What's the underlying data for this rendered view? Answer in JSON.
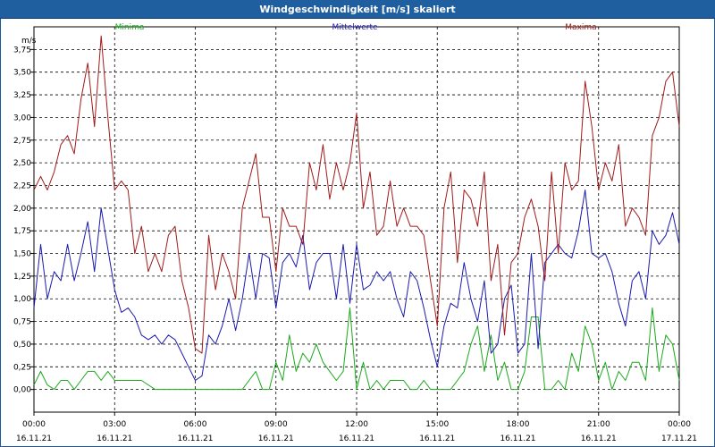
{
  "window": {
    "title": "Windgeschwindigkeit [m/s] skaliert"
  },
  "chart_data": {
    "type": "line",
    "title": "Windgeschwindigkeit [m/s] skaliert",
    "ylabel": "m/s",
    "xlabel": "",
    "ylim": [
      -0.25,
      4.0
    ],
    "xlim": [
      0,
      24
    ],
    "grid": true,
    "legend_position": "top",
    "y_ticks": [
      "0,00",
      "0,25",
      "0,50",
      "0,75",
      "1,00",
      "1,25",
      "1,50",
      "1,75",
      "2,00",
      "2,25",
      "2,50",
      "2,75",
      "3,00",
      "3,25",
      "3,50",
      "3,75"
    ],
    "y_tick_values": [
      0,
      0.25,
      0.5,
      0.75,
      1.0,
      1.25,
      1.5,
      1.75,
      2.0,
      2.25,
      2.5,
      2.75,
      3.0,
      3.25,
      3.5,
      3.75
    ],
    "x_ticks": [
      {
        "x": 0,
        "time": "00:00",
        "date": "16.11.21"
      },
      {
        "x": 3,
        "time": "03:00",
        "date": "16.11.21"
      },
      {
        "x": 6,
        "time": "06:00",
        "date": "16.11.21"
      },
      {
        "x": 9,
        "time": "09:00",
        "date": "16.11.21"
      },
      {
        "x": 12,
        "time": "12:00",
        "date": "16.11.21"
      },
      {
        "x": 15,
        "time": "15:00",
        "date": "16.11.21"
      },
      {
        "x": 18,
        "time": "18:00",
        "date": "16.11.21"
      },
      {
        "x": 21,
        "time": "21:00",
        "date": "16.11.21"
      },
      {
        "x": 24,
        "time": "00:00",
        "date": "17.11.21"
      }
    ],
    "series": [
      {
        "name": "Minima",
        "color": "#1aaa1a",
        "x": [
          0,
          0.25,
          0.5,
          0.75,
          1,
          1.25,
          1.5,
          1.75,
          2,
          2.25,
          2.5,
          2.75,
          3,
          3.5,
          4,
          4.5,
          5,
          5.5,
          6,
          6.5,
          7,
          7.5,
          7.75,
          8,
          8.25,
          8.5,
          8.75,
          9,
          9.25,
          9.5,
          9.75,
          10,
          10.25,
          10.5,
          10.75,
          11,
          11.25,
          11.5,
          11.75,
          12,
          12.25,
          12.5,
          12.75,
          13,
          13.25,
          13.5,
          13.75,
          14,
          14.25,
          14.5,
          14.75,
          15,
          15.25,
          15.5,
          15.75,
          16,
          16.25,
          16.5,
          16.75,
          17,
          17.25,
          17.5,
          17.75,
          18,
          18.25,
          18.5,
          18.75,
          19,
          19.25,
          19.5,
          19.75,
          20,
          20.25,
          20.5,
          20.75,
          21,
          21.25,
          21.5,
          21.75,
          22,
          22.25,
          22.5,
          22.75,
          23,
          23.25,
          23.5,
          23.75,
          24
        ],
        "values": [
          0.05,
          0.2,
          0.05,
          0.0,
          0.1,
          0.1,
          0.0,
          0.1,
          0.2,
          0.2,
          0.1,
          0.2,
          0.1,
          0.1,
          0.1,
          0.0,
          0.0,
          0.0,
          0.0,
          0.0,
          0.0,
          0.0,
          0.0,
          0.1,
          0.2,
          0.0,
          0.0,
          0.3,
          0.1,
          0.6,
          0.2,
          0.4,
          0.3,
          0.5,
          0.3,
          0.2,
          0.1,
          0.2,
          0.9,
          0.0,
          0.3,
          0.0,
          0.1,
          0.0,
          0.1,
          0.1,
          0.1,
          0.0,
          0.0,
          0.1,
          0.0,
          0.0,
          0.0,
          0.0,
          0.1,
          0.2,
          0.5,
          0.7,
          0.2,
          0.6,
          0.1,
          0.3,
          0.0,
          0.0,
          0.2,
          0.8,
          0.8,
          0.0,
          0.0,
          0.1,
          0.0,
          0.4,
          0.2,
          0.7,
          0.5,
          0.1,
          0.3,
          0.0,
          0.2,
          0.1,
          0.3,
          0.3,
          0.1,
          0.9,
          0.2,
          0.6,
          0.5,
          0.1
        ],
        "line_style": "step"
      },
      {
        "name": "Mittelwerte",
        "color": "#1a1ab0",
        "x": [
          0,
          0.25,
          0.5,
          0.75,
          1,
          1.25,
          1.5,
          1.75,
          2,
          2.25,
          2.5,
          2.75,
          3,
          3.25,
          3.5,
          3.75,
          4,
          4.25,
          4.5,
          4.75,
          5,
          5.25,
          5.5,
          5.75,
          6,
          6.25,
          6.5,
          6.75,
          7,
          7.25,
          7.5,
          7.75,
          8,
          8.25,
          8.5,
          8.75,
          9,
          9.25,
          9.5,
          9.75,
          10,
          10.25,
          10.5,
          10.75,
          11,
          11.25,
          11.5,
          11.75,
          12,
          12.25,
          12.5,
          12.75,
          13,
          13.25,
          13.5,
          13.75,
          14,
          14.25,
          14.5,
          14.75,
          15,
          15.25,
          15.5,
          15.75,
          16,
          16.25,
          16.5,
          16.75,
          17,
          17.25,
          17.5,
          17.75,
          18,
          18.25,
          18.5,
          18.75,
          19,
          19.25,
          19.5,
          19.75,
          20,
          20.25,
          20.5,
          20.75,
          21,
          21.25,
          21.5,
          21.75,
          22,
          22.25,
          22.5,
          22.75,
          23,
          23.25,
          23.5,
          23.75,
          24
        ],
        "values": [
          0.9,
          1.6,
          1.0,
          1.3,
          1.2,
          1.6,
          1.2,
          1.5,
          1.85,
          1.3,
          2.0,
          1.55,
          1.1,
          0.85,
          0.9,
          0.8,
          0.6,
          0.55,
          0.6,
          0.5,
          0.6,
          0.55,
          0.4,
          0.25,
          0.1,
          0.15,
          0.6,
          0.5,
          0.7,
          1.0,
          0.65,
          1.0,
          1.5,
          1.0,
          1.5,
          1.45,
          0.9,
          1.4,
          1.5,
          1.35,
          1.7,
          1.1,
          1.4,
          1.5,
          1.5,
          1.0,
          1.6,
          0.95,
          1.6,
          1.1,
          1.15,
          1.3,
          1.2,
          1.3,
          1.0,
          0.8,
          1.3,
          1.2,
          0.9,
          0.55,
          0.25,
          0.7,
          0.95,
          0.9,
          1.4,
          1.0,
          0.75,
          1.2,
          0.4,
          0.5,
          1.0,
          1.15,
          0.4,
          0.5,
          1.5,
          0.45,
          1.4,
          1.5,
          1.6,
          1.5,
          1.45,
          1.75,
          2.2,
          1.5,
          1.45,
          1.5,
          1.3,
          0.95,
          0.7,
          1.2,
          1.3,
          1.0,
          1.75,
          1.6,
          1.7,
          1.95,
          1.6
        ]
      },
      {
        "name": "Maxima",
        "color": "#a01a1a",
        "x": [
          0,
          0.25,
          0.5,
          0.75,
          1,
          1.25,
          1.5,
          1.75,
          2,
          2.25,
          2.5,
          2.75,
          3,
          3.25,
          3.5,
          3.75,
          4,
          4.25,
          4.5,
          4.75,
          5,
          5.25,
          5.5,
          5.75,
          6,
          6.25,
          6.5,
          6.75,
          7,
          7.25,
          7.5,
          7.75,
          8,
          8.25,
          8.5,
          8.75,
          9,
          9.25,
          9.5,
          9.75,
          10,
          10.25,
          10.5,
          10.75,
          11,
          11.25,
          11.5,
          11.75,
          12,
          12.25,
          12.5,
          12.75,
          13,
          13.25,
          13.5,
          13.75,
          14,
          14.25,
          14.5,
          14.75,
          15,
          15.25,
          15.5,
          15.75,
          16,
          16.25,
          16.5,
          16.75,
          17,
          17.25,
          17.5,
          17.75,
          18,
          18.25,
          18.5,
          18.75,
          19,
          19.25,
          19.5,
          19.75,
          20,
          20.25,
          20.5,
          20.75,
          21,
          21.25,
          21.5,
          21.75,
          22,
          22.25,
          22.5,
          22.75,
          23,
          23.25,
          23.5,
          23.75,
          24
        ],
        "values": [
          2.2,
          2.35,
          2.2,
          2.4,
          2.7,
          2.8,
          2.6,
          3.2,
          3.6,
          2.9,
          3.9,
          3.0,
          2.2,
          2.3,
          2.2,
          1.5,
          1.8,
          1.3,
          1.5,
          1.3,
          1.7,
          1.8,
          1.2,
          0.9,
          0.45,
          0.4,
          1.7,
          1.1,
          1.5,
          1.3,
          1.0,
          2.0,
          2.3,
          2.6,
          1.9,
          1.9,
          1.3,
          2.0,
          1.8,
          1.8,
          1.6,
          2.5,
          2.2,
          2.7,
          2.1,
          2.5,
          2.2,
          2.5,
          3.05,
          2.0,
          2.4,
          1.7,
          1.8,
          2.3,
          1.8,
          2.0,
          1.8,
          1.8,
          1.7,
          1.2,
          0.7,
          2.0,
          2.4,
          1.4,
          2.2,
          2.1,
          1.8,
          2.4,
          1.2,
          1.6,
          0.6,
          1.4,
          1.5,
          1.9,
          2.1,
          1.8,
          1.2,
          2.4,
          1.5,
          2.5,
          2.2,
          2.3,
          3.4,
          2.9,
          2.2,
          2.5,
          2.3,
          2.7,
          1.8,
          2.0,
          1.9,
          1.7,
          2.8,
          3.0,
          3.4,
          3.5,
          2.9
        ]
      }
    ]
  }
}
